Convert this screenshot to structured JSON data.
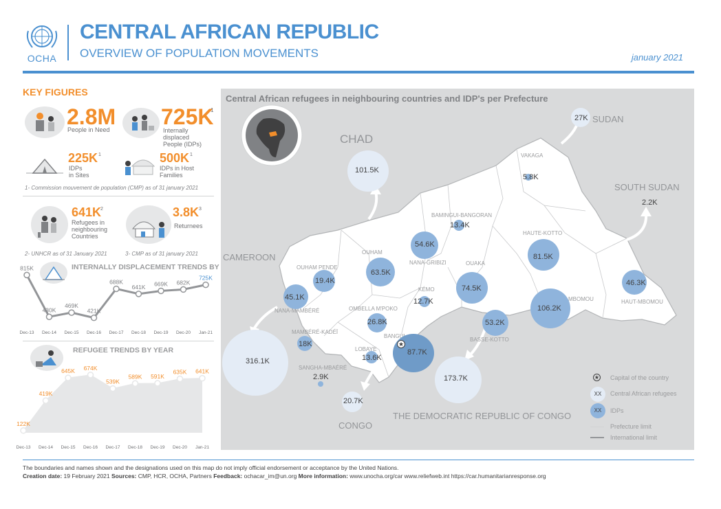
{
  "header": {
    "logo_text": "OCHA",
    "title": "CENTRAL AFRICAN REPUBLIC",
    "subtitle": "OVERVIEW OF POPULATION MOVEMENTS",
    "date": "january 2021"
  },
  "key_figures": {
    "title": "KEY FIGURES",
    "people_in_need": {
      "value": "2.8M",
      "label": "People in Need"
    },
    "idps": {
      "value": "725K",
      "sup": "1",
      "label_1": "Internally",
      "label_2": "displaced",
      "label_3": "People (IDPs)"
    },
    "idps_in_sites": {
      "value": "225K",
      "sup": "1",
      "label_1": "IDPs",
      "label_2": "in Sites"
    },
    "idps_host": {
      "value": "500K",
      "sup": "1",
      "label_1": "IDPs in Host",
      "label_2": "Families"
    },
    "note_1": "1- Commission mouvement de population (CMP) as of 31 january 2021",
    "refugees": {
      "value": "641K",
      "sup": "2",
      "label_1": "Refugees in",
      "label_2": "neighbouring",
      "label_3": "Countries"
    },
    "returnees": {
      "value": "3.8K",
      "sup": "3",
      "label": "Returnees"
    },
    "note_2": "2- UNHCR as of 31 January 2021",
    "note_3": "3- CMP as of 31 january 2021"
  },
  "idp_trend": {
    "title": "INTERNALLY DISPLACEMENT TRENDS BY YEAR",
    "color": "#808285",
    "categories": [
      "Dec-13",
      "Dec-14",
      "Dec-15",
      "Dec-16",
      "Dec-17",
      "Dec-18",
      "Dec-19",
      "Dec-20",
      "Jan-21"
    ],
    "labels": [
      "815K",
      "430K",
      "469K",
      "421K",
      "688K",
      "641K",
      "669K",
      "682K",
      "725K"
    ],
    "values": [
      815,
      430,
      469,
      421,
      688,
      641,
      669,
      682,
      725
    ]
  },
  "refugee_trend": {
    "title": "REFUGEE TRENDS BY YEAR",
    "color": "#f28e2b",
    "categories": [
      "Dec-13",
      "Dec-14",
      "Dec-15",
      "Dec-16",
      "Dec-17",
      "Dec-18",
      "Dec-19",
      "Dec-20",
      "Jan-21"
    ],
    "labels": [
      "122K",
      "419K",
      "645K",
      "674K",
      "539K",
      "589K",
      "591K",
      "635K",
      "641K"
    ],
    "values": [
      122,
      419,
      645,
      674,
      539,
      589,
      591,
      635,
      641
    ]
  },
  "map": {
    "title": "Central African refugees in neighbouring countries and IDP's per Prefecture",
    "countries": {
      "chad": "CHAD",
      "sudan": "SUDAN",
      "south_sudan": "SOUTH SUDAN",
      "cameroon": "CAMEROON",
      "congo": "CONGO",
      "drc": "THE DEMOCRATIC REPUBLIC OF CONGO"
    },
    "prefectures": {
      "vakaga": "VAKAGA",
      "bamingui": "BAMINGUI-BANGORAN",
      "haute_kotto": "HAUTE-KOTTO",
      "ouham_pende": "OUHAM PENDE",
      "ouham": "OUHAM",
      "nana_gribizi": "NANA-GRIBIZI",
      "ouaka": "OUAKA",
      "kemo": "KÉMO",
      "nana_mambere": "NANA-MAMBÉRÉ",
      "ombella": "OMBELLA M'POKO",
      "mbomou": "MBOMOU",
      "haut_mbomou": "HAUT-MBOMOU",
      "mambere_kadei": "MAMBÉRÉ-KADÉÏ",
      "bangui": "BANGUI",
      "basse_kotto": "BASSE-KOTTO",
      "lobaye": "LOBAYE",
      "sangha": "SANGHA-MBAÉRÉ"
    },
    "refugees": {
      "chad": "101.5K",
      "sudan": "27K",
      "south_sudan": "2.2K",
      "cameroon": "316.1K",
      "congo": "20.7K",
      "drc": "173.7K"
    },
    "idps": {
      "vakaga": "5.8K",
      "bamingui": "13.4K",
      "haute_kotto": "81.5K",
      "ouham_pende": "19.4K",
      "ouham": "63.5K",
      "nana_gribizi": "54.6K",
      "ouaka": "74.5K",
      "kemo": "12.7K",
      "nana_mambere": "45.1K",
      "ombella": "26.8K",
      "mbomou": "106.2K",
      "haut_mbomou": "46.3K",
      "mambere_kadei": "18K",
      "bangui": "87.7K",
      "basse_kotto": "53.2K",
      "lobaye": "13.6K",
      "sangha": "2.9K"
    },
    "refugee_color": "#e4ecf6",
    "idp_color": "#8fb4dc",
    "legend": {
      "capital": "Capital of the country",
      "xx": "XX",
      "refugees": "Central African refugees",
      "idps": "IDPs",
      "prefecture": "Prefecture limit",
      "international": "International limit"
    }
  },
  "footer": {
    "disclaimer": "The boundaries and names shown and the designations used on this map do not imply official endorsement or acceptance by the United Nations.",
    "creation_label": "Creation date:",
    "creation_date": "19 February 2021",
    "sources_label": "Sources:",
    "sources": "CMP, HCR, OCHA, Partners",
    "feedback_label": "Feedback:",
    "feedback": "ochacar_im@un.org",
    "more_label": "More information:",
    "more": "www.unocha.org/car www.reliefweb.int https://car.humanitarianresponse.org"
  }
}
